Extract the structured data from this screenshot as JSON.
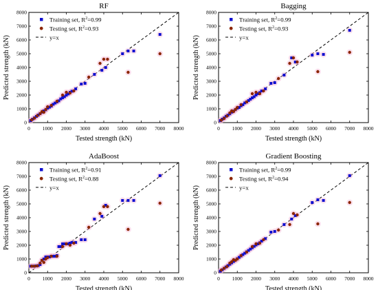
{
  "chart_data": [
    {
      "type": "scatter",
      "title": "RF",
      "xlabel": "Tested strength (kN)",
      "ylabel": "Predicted strength (kN)",
      "xlim": [
        0,
        8000
      ],
      "ylim": [
        0,
        8000
      ],
      "xticks": [
        0,
        1000,
        2000,
        3000,
        4000,
        5000,
        6000,
        7000,
        8000
      ],
      "yticks": [
        0,
        1000,
        2000,
        3000,
        4000,
        5000,
        6000,
        7000,
        8000
      ],
      "legend_position": "top-left",
      "series": [
        {
          "name": "Training set, R",
          "r2": "0.99",
          "marker": "square",
          "color": "#1010d0",
          "x": [
            100,
            200,
            300,
            400,
            500,
            600,
            700,
            800,
            900,
            1000,
            1100,
            1200,
            1300,
            1400,
            1500,
            1600,
            1700,
            1800,
            1900,
            2000,
            2100,
            2200,
            2300,
            2500,
            2800,
            3000,
            3500,
            3900,
            4100,
            5000,
            5300,
            5600,
            7000
          ],
          "y": [
            150,
            250,
            350,
            450,
            550,
            650,
            760,
            850,
            930,
            1050,
            1120,
            1200,
            1330,
            1420,
            1500,
            1580,
            1720,
            1800,
            1880,
            1990,
            2080,
            2200,
            2280,
            2450,
            2800,
            2850,
            3500,
            3800,
            4000,
            5000,
            5200,
            5200,
            6400
          ]
        },
        {
          "name": "Testing set, R",
          "r2": "0.93",
          "marker": "circle",
          "color": "#8b2500",
          "x": [
            150,
            300,
            450,
            600,
            700,
            800,
            900,
            1000,
            1200,
            1500,
            1800,
            2000,
            2200,
            2400,
            3200,
            3800,
            4000,
            4200,
            5300,
            7000
          ],
          "y": [
            200,
            320,
            500,
            650,
            800,
            750,
            950,
            1150,
            1250,
            1550,
            2000,
            2200,
            2150,
            2300,
            3300,
            4300,
            4600,
            4600,
            3650,
            5000
          ]
        }
      ]
    },
    {
      "type": "scatter",
      "title": "Bagging",
      "xlabel": "Tested strength (kN)",
      "ylabel": "Predicted strength (kN)",
      "xlim": [
        0,
        8000
      ],
      "ylim": [
        0,
        8000
      ],
      "xticks": [
        0,
        1000,
        2000,
        3000,
        4000,
        5000,
        6000,
        7000,
        8000
      ],
      "yticks": [
        0,
        1000,
        2000,
        3000,
        4000,
        5000,
        6000,
        7000,
        8000
      ],
      "legend_position": "top-left",
      "series": [
        {
          "name": "Training set, R",
          "r2": "0.99",
          "marker": "square",
          "color": "#1010d0",
          "x": [
            100,
            200,
            300,
            400,
            500,
            600,
            700,
            800,
            900,
            1000,
            1100,
            1200,
            1300,
            1400,
            1500,
            1600,
            1700,
            1800,
            1900,
            2000,
            2100,
            2200,
            2300,
            2500,
            2800,
            3000,
            3500,
            3900,
            4100,
            5000,
            5300,
            5600,
            7000
          ],
          "y": [
            150,
            250,
            340,
            460,
            540,
            640,
            760,
            840,
            940,
            1050,
            1100,
            1220,
            1300,
            1430,
            1500,
            1600,
            1700,
            1800,
            1880,
            2000,
            2100,
            2180,
            2300,
            2450,
            2850,
            2900,
            3450,
            4700,
            4400,
            4900,
            5000,
            4950,
            6700
          ]
        },
        {
          "name": "Testing set, R",
          "r2": "0.93",
          "marker": "circle",
          "color": "#8b2500",
          "x": [
            150,
            300,
            450,
            600,
            700,
            800,
            900,
            1000,
            1200,
            1500,
            1800,
            2000,
            2200,
            2400,
            3200,
            3800,
            4000,
            4200,
            5300,
            7000
          ],
          "y": [
            180,
            300,
            480,
            700,
            850,
            800,
            950,
            1100,
            1300,
            1500,
            2100,
            2200,
            2100,
            2300,
            3200,
            4300,
            4700,
            4400,
            3700,
            5100
          ]
        }
      ]
    },
    {
      "type": "scatter",
      "title": "AdaBoost",
      "xlabel": "Tested strength (kN)",
      "ylabel": "Predicted strength (kN)",
      "xlim": [
        0,
        8000
      ],
      "ylim": [
        0,
        8000
      ],
      "xticks": [
        0,
        1000,
        2000,
        3000,
        4000,
        5000,
        6000,
        7000,
        8000
      ],
      "yticks": [
        0,
        1000,
        2000,
        3000,
        4000,
        5000,
        6000,
        7000,
        8000
      ],
      "legend_position": "top-left",
      "series": [
        {
          "name": "Training set, R",
          "r2": "0.91",
          "marker": "square",
          "color": "#1010d0",
          "x": [
            100,
            200,
            300,
            400,
            500,
            600,
            700,
            800,
            900,
            1000,
            1100,
            1200,
            1300,
            1400,
            1500,
            1600,
            1700,
            1800,
            1900,
            2000,
            2100,
            2200,
            2300,
            2500,
            2800,
            3000,
            3500,
            3900,
            4100,
            5000,
            5300,
            5600,
            7000
          ],
          "y": [
            480,
            480,
            480,
            500,
            520,
            600,
            900,
            1000,
            1150,
            1150,
            1150,
            1200,
            1200,
            1200,
            1250,
            1900,
            1900,
            2100,
            2100,
            2100,
            2100,
            2150,
            2200,
            2200,
            2400,
            2400,
            3900,
            4100,
            4900,
            5250,
            5250,
            5250,
            7050
          ]
        },
        {
          "name": "Testing set, R",
          "r2": "0.88",
          "marker": "circle",
          "color": "#8b2500",
          "x": [
            150,
            300,
            450,
            600,
            700,
            800,
            900,
            1000,
            1200,
            1500,
            1800,
            2000,
            2200,
            2400,
            3200,
            3800,
            4000,
            4200,
            5300,
            7000
          ],
          "y": [
            480,
            480,
            500,
            700,
            900,
            750,
            1000,
            1100,
            1200,
            1200,
            1900,
            2100,
            2000,
            2150,
            3300,
            4300,
            4800,
            4800,
            3150,
            5050
          ]
        }
      ]
    },
    {
      "type": "scatter",
      "title": "Gradient Boosting",
      "xlabel": "Tested strength (kN)",
      "ylabel": "Predicted strength (kN)",
      "xlim": [
        0,
        8000
      ],
      "ylim": [
        0,
        8000
      ],
      "xticks": [
        0,
        1000,
        2000,
        3000,
        4000,
        5000,
        6000,
        7000,
        8000
      ],
      "yticks": [
        0,
        1000,
        2000,
        3000,
        4000,
        5000,
        6000,
        7000,
        8000
      ],
      "legend_position": "top-left",
      "series": [
        {
          "name": "Training set, R",
          "r2": "0.99",
          "marker": "square",
          "color": "#1010d0",
          "x": [
            100,
            200,
            300,
            400,
            500,
            600,
            700,
            800,
            900,
            1000,
            1100,
            1200,
            1300,
            1400,
            1500,
            1600,
            1700,
            1800,
            1900,
            2000,
            2100,
            2200,
            2300,
            2500,
            2800,
            3000,
            3500,
            3900,
            4100,
            5000,
            5300,
            5600,
            7000
          ],
          "y": [
            120,
            220,
            320,
            420,
            520,
            620,
            720,
            820,
            920,
            1020,
            1120,
            1220,
            1320,
            1420,
            1520,
            1620,
            1720,
            1820,
            1920,
            2020,
            2100,
            2180,
            2300,
            2480,
            2950,
            3000,
            3500,
            3900,
            4150,
            5100,
            5300,
            5250,
            7050
          ]
        },
        {
          "name": "Testing set, R",
          "r2": "0.94",
          "marker": "circle",
          "color": "#8b2500",
          "x": [
            150,
            300,
            450,
            600,
            700,
            800,
            900,
            1000,
            1200,
            1500,
            1800,
            2000,
            2200,
            2400,
            3200,
            3800,
            4000,
            4200,
            5300,
            7000
          ],
          "y": [
            200,
            330,
            450,
            700,
            800,
            950,
            900,
            1000,
            1250,
            1500,
            1900,
            2100,
            2150,
            2400,
            3100,
            3500,
            4300,
            4200,
            3550,
            5100
          ]
        }
      ]
    }
  ],
  "legend_line_label": "y=x",
  "r2_superscript": "2"
}
